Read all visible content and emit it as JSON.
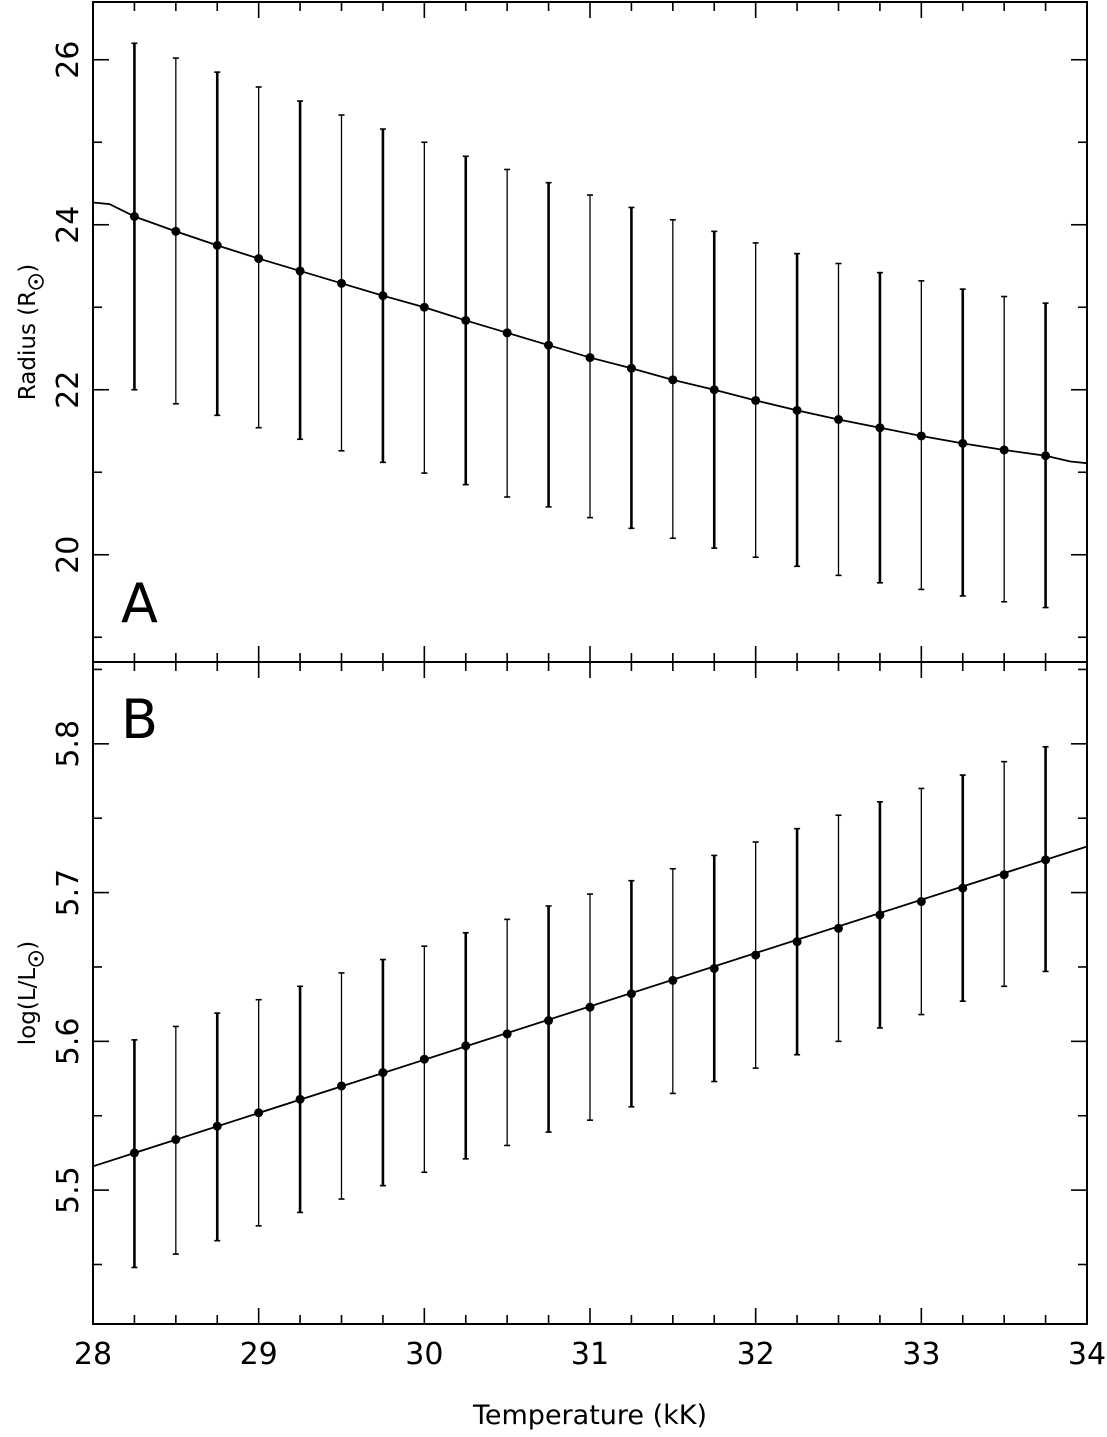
{
  "chart_data": [
    {
      "panel_label": "A",
      "type": "line",
      "ylabel_main": "Radius (R",
      "ylabel_close": ")",
      "ylabel_symbol": "sun-symbol",
      "ylim": [
        18.7,
        26.7
      ],
      "yticks": [
        20,
        22,
        24,
        26
      ],
      "xlim": [
        28,
        34
      ],
      "curve": {
        "x": [
          28.0,
          28.1,
          28.25,
          28.5,
          28.75,
          29.0,
          29.25,
          29.5,
          29.75,
          30.0,
          30.25,
          30.5,
          30.75,
          31.0,
          31.25,
          31.5,
          31.75,
          32.0,
          32.25,
          32.5,
          32.75,
          33.0,
          33.25,
          33.5,
          33.75,
          33.9,
          34.0
        ],
        "y": [
          24.27,
          24.25,
          24.1,
          23.92,
          23.75,
          23.59,
          23.44,
          23.29,
          23.14,
          23.0,
          22.84,
          22.69,
          22.54,
          22.39,
          22.26,
          22.12,
          22.0,
          21.87,
          21.75,
          21.64,
          21.54,
          21.44,
          21.35,
          21.27,
          21.2,
          21.13,
          21.11
        ]
      },
      "points": {
        "x": [
          28.25,
          28.5,
          28.75,
          29.0,
          29.25,
          29.5,
          29.75,
          30.0,
          30.25,
          30.5,
          30.75,
          31.0,
          31.25,
          31.5,
          31.75,
          32.0,
          32.25,
          32.5,
          32.75,
          33.0,
          33.25,
          33.5,
          33.75
        ],
        "y": [
          24.1,
          23.92,
          23.75,
          23.59,
          23.44,
          23.29,
          23.14,
          23.0,
          22.84,
          22.69,
          22.54,
          22.39,
          22.26,
          22.12,
          22.0,
          21.87,
          21.75,
          21.64,
          21.54,
          21.44,
          21.35,
          21.27,
          21.2
        ],
        "y_low": [
          22.0,
          21.83,
          21.69,
          21.54,
          21.4,
          21.26,
          21.12,
          20.99,
          20.85,
          20.7,
          20.58,
          20.45,
          20.32,
          20.2,
          20.08,
          19.97,
          19.86,
          19.75,
          19.66,
          19.58,
          19.5,
          19.43,
          19.36
        ],
        "y_high": [
          26.2,
          26.02,
          25.85,
          25.67,
          25.5,
          25.33,
          25.16,
          25.0,
          24.83,
          24.67,
          24.51,
          24.36,
          24.21,
          24.06,
          23.92,
          23.78,
          23.65,
          23.53,
          23.42,
          23.32,
          23.22,
          23.13,
          23.05
        ]
      }
    },
    {
      "panel_label": "B",
      "type": "line",
      "ylabel_main": "log(L/L",
      "ylabel_close": ")",
      "ylabel_symbol": "sun-symbol",
      "ylim": [
        5.41,
        5.855
      ],
      "yticks": [
        5.5,
        5.6,
        5.7,
        5.8
      ],
      "ytick_labels": [
        "5.5",
        "5.6",
        "5.7",
        "5.8"
      ],
      "xlim": [
        28,
        34
      ],
      "xlabel": "Temperature (kK)",
      "xticks": [
        28,
        29,
        30,
        31,
        32,
        33,
        34
      ],
      "curve": {
        "x": [
          28.0,
          34.0
        ],
        "y": [
          5.516,
          5.731
        ]
      },
      "points": {
        "x": [
          28.25,
          28.5,
          28.75,
          29.0,
          29.25,
          29.5,
          29.75,
          30.0,
          30.25,
          30.5,
          30.75,
          31.0,
          31.25,
          31.5,
          31.75,
          32.0,
          32.25,
          32.5,
          32.75,
          33.0,
          33.25,
          33.5,
          33.75
        ],
        "y": [
          5.525,
          5.534,
          5.543,
          5.552,
          5.561,
          5.57,
          5.579,
          5.588,
          5.597,
          5.605,
          5.614,
          5.623,
          5.632,
          5.641,
          5.649,
          5.658,
          5.667,
          5.676,
          5.685,
          5.694,
          5.703,
          5.712,
          5.722
        ],
        "y_low": [
          5.448,
          5.457,
          5.466,
          5.476,
          5.485,
          5.494,
          5.503,
          5.512,
          5.521,
          5.53,
          5.539,
          5.547,
          5.556,
          5.565,
          5.573,
          5.582,
          5.591,
          5.6,
          5.609,
          5.618,
          5.627,
          5.637,
          5.647
        ],
        "y_high": [
          5.601,
          5.61,
          5.619,
          5.628,
          5.637,
          5.646,
          5.655,
          5.664,
          5.673,
          5.682,
          5.691,
          5.699,
          5.708,
          5.716,
          5.725,
          5.734,
          5.743,
          5.752,
          5.761,
          5.77,
          5.779,
          5.788,
          5.798
        ]
      }
    }
  ]
}
